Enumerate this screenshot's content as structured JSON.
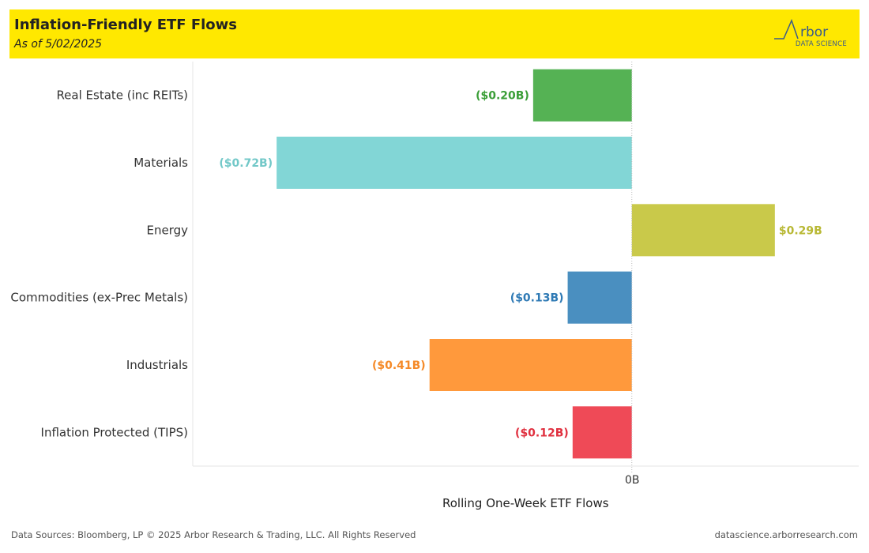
{
  "header": {
    "title": "Inflation-Friendly ETF Flows",
    "subtitle": "As of 5/02/2025",
    "logo_text": "Arbor",
    "logo_sub": "DATA SCIENCE"
  },
  "footer": {
    "left": "Data Sources: Bloomberg, LP © 2025 Arbor Research & Trading, LLC. All Rights Reserved",
    "right": "datascience.arborresearch.com"
  },
  "chart_data": {
    "type": "bar",
    "orientation": "horizontal",
    "title": "",
    "xlabel": "Rolling One-Week ETF Flows",
    "ylabel": "",
    "x_tick_labels": [
      "0B"
    ],
    "xlim": [
      -0.89,
      0.46
    ],
    "grid": false,
    "categories": [
      "Real Estate (inc REITs)",
      "Materials",
      "Energy",
      "Commodities (ex-Prec Metals)",
      "Industrials",
      "Inflation Protected (TIPS)"
    ],
    "values": [
      -0.2,
      -0.72,
      0.29,
      -0.13,
      -0.41,
      -0.12
    ],
    "data_labels": [
      "($0.20B)",
      "($0.72B)",
      "$0.29B",
      "($0.13B)",
      "($0.41B)",
      "($0.12B)"
    ],
    "colors": [
      "#55b254",
      "#82d6d6",
      "#c9c94a",
      "#4a8fc0",
      "#ff993c",
      "#ef4a57"
    ],
    "label_colors": [
      "#3a9e37",
      "#72c8c8",
      "#b8b834",
      "#2f7ab5",
      "#f58a28",
      "#e0303f"
    ]
  }
}
